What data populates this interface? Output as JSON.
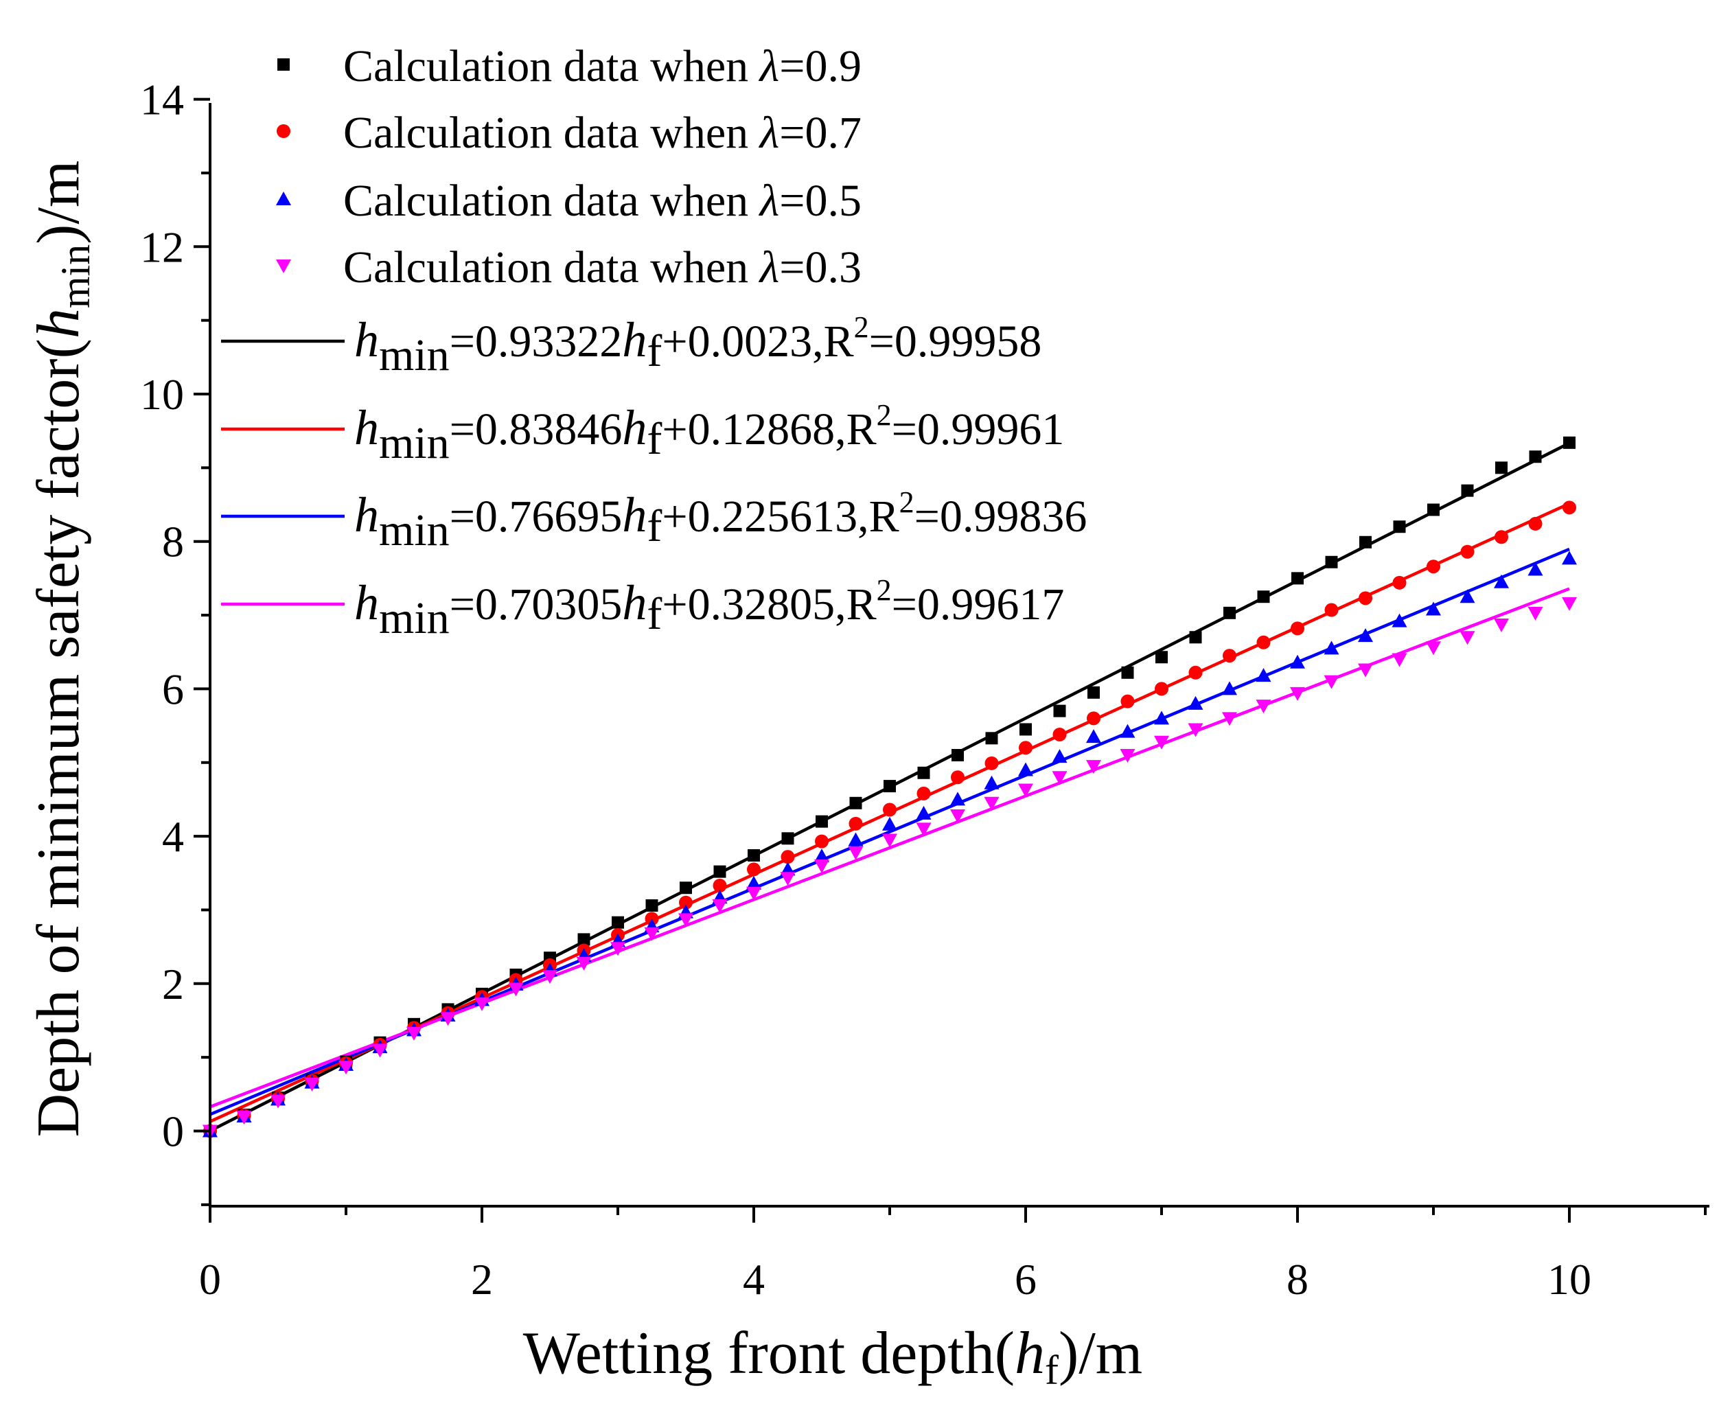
{
  "chart_data": {
    "type": "scatter",
    "xlabel": {
      "prefix": "Wetting front depth(",
      "var": "h",
      "sub": "f",
      "suffix": ")/m"
    },
    "ylabel": {
      "prefix": "Depth of minimum safety factor(",
      "var": "h",
      "sub": "min",
      "suffix": ")/m"
    },
    "xlim": [
      0,
      11
    ],
    "ylim": [
      -1,
      14
    ],
    "xticks": [
      0,
      2,
      4,
      6,
      8,
      10
    ],
    "yticks": [
      0,
      2,
      4,
      6,
      8,
      10,
      12,
      14
    ],
    "x": [
      0,
      0.25,
      0.5,
      0.75,
      1,
      1.25,
      1.5,
      1.75,
      2,
      2.25,
      2.5,
      2.75,
      3,
      3.25,
      3.5,
      3.75,
      4,
      4.25,
      4.5,
      4.75,
      5,
      5.25,
      5.5,
      5.75,
      6,
      6.25,
      6.5,
      6.75,
      7,
      7.25,
      7.5,
      7.75,
      8,
      8.25,
      8.5,
      8.75,
      9,
      9.25,
      9.5,
      9.75,
      10
    ],
    "series": [
      {
        "name": "λ=0.9",
        "marker": "square",
        "color": "#000000",
        "legend_label": {
          "prefix": "Calculation data when ",
          "var": "λ",
          "suffix": "=0.9"
        },
        "values": [
          0,
          0.22,
          0.45,
          0.69,
          0.94,
          1.2,
          1.45,
          1.65,
          1.86,
          2.12,
          2.35,
          2.6,
          2.83,
          3.06,
          3.3,
          3.52,
          3.74,
          3.97,
          4.2,
          4.45,
          4.68,
          4.86,
          5.1,
          5.33,
          5.45,
          5.7,
          5.95,
          6.22,
          6.43,
          6.7,
          7.03,
          7.25,
          7.5,
          7.72,
          7.99,
          8.2,
          8.43,
          8.69,
          9.0,
          9.15,
          9.34
        ],
        "fit": {
          "slope": 0.93322,
          "intercept": 0.0023,
          "eq_rest": "=0.93322",
          "eq_tail": "+0.0023,R",
          "r2": "=0.99958"
        }
      },
      {
        "name": "λ=0.7",
        "marker": "circle",
        "color": "#ff0000",
        "legend_label": {
          "prefix": "Calculation data when ",
          "var": "λ",
          "suffix": "=0.7"
        },
        "values": [
          0,
          0.21,
          0.44,
          0.68,
          0.92,
          1.17,
          1.4,
          1.6,
          1.82,
          2.05,
          2.25,
          2.45,
          2.66,
          2.88,
          3.1,
          3.33,
          3.55,
          3.72,
          3.93,
          4.17,
          4.36,
          4.58,
          4.8,
          4.99,
          5.2,
          5.38,
          5.6,
          5.83,
          6.0,
          6.22,
          6.45,
          6.63,
          6.82,
          7.07,
          7.23,
          7.44,
          7.66,
          7.86,
          8.06,
          8.24,
          8.46
        ],
        "fit": {
          "slope": 0.83846,
          "intercept": 0.12868,
          "eq_rest": "=0.83846",
          "eq_tail": "+0.12868,R",
          "r2": "=0.99961"
        }
      },
      {
        "name": "λ=0.5",
        "marker": "triangle-up",
        "color": "#0000ff",
        "legend_label": {
          "prefix": "Calculation data when ",
          "var": "λ",
          "suffix": "=0.5"
        },
        "values": [
          0,
          0.2,
          0.43,
          0.66,
          0.9,
          1.14,
          1.37,
          1.57,
          1.78,
          1.99,
          2.18,
          2.38,
          2.58,
          2.78,
          2.97,
          3.17,
          3.36,
          3.55,
          3.73,
          3.95,
          4.16,
          4.31,
          4.5,
          4.72,
          4.9,
          5.08,
          5.35,
          5.42,
          5.6,
          5.8,
          6.0,
          6.18,
          6.36,
          6.55,
          6.72,
          6.92,
          7.08,
          7.25,
          7.45,
          7.62,
          7.77
        ],
        "fit": {
          "slope": 0.76695,
          "intercept": 0.225613,
          "eq_rest": "=0.76695",
          "eq_tail": "+0.225613,R",
          "r2": "=0.99836"
        }
      },
      {
        "name": "λ=0.3",
        "marker": "triangle-down",
        "color": "#ff00ff",
        "legend_label": {
          "prefix": "Calculation data when ",
          "var": "λ",
          "suffix": "=0.3"
        },
        "values": [
          0,
          0.19,
          0.41,
          0.64,
          0.87,
          1.1,
          1.33,
          1.53,
          1.73,
          1.93,
          2.1,
          2.28,
          2.48,
          2.68,
          2.87,
          3.06,
          3.23,
          3.43,
          3.6,
          3.78,
          3.95,
          4.1,
          4.28,
          4.45,
          4.63,
          4.8,
          4.95,
          5.1,
          5.28,
          5.45,
          5.6,
          5.77,
          5.94,
          6.1,
          6.26,
          6.4,
          6.56,
          6.7,
          6.87,
          7.03,
          7.16
        ],
        "fit": {
          "slope": 0.70305,
          "intercept": 0.32805,
          "eq_rest": "=0.70305",
          "eq_tail": "+0.32805,R",
          "r2": "=0.99617"
        }
      }
    ],
    "fit_label": {
      "var": "h",
      "sub": "min",
      "xvar": "h",
      "xsub": "f",
      "sup": "2"
    },
    "legend_position": "top-left",
    "grid": false
  }
}
